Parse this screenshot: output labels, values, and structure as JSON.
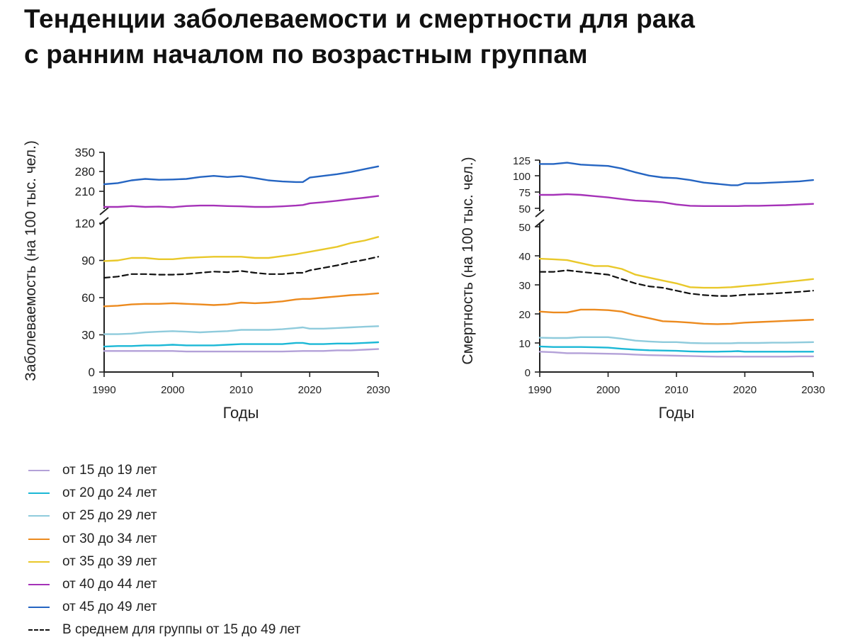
{
  "title": {
    "line1": "Тенденции заболеваемости и смертности для рака",
    "line2": "с ранним началом по возрастным группам"
  },
  "legend": [
    {
      "key": "g15_19",
      "label": "от 15 до 19 лет",
      "color": "#b3a1d8",
      "dashed": false
    },
    {
      "key": "g20_24",
      "label": "от 20 до 24 лет",
      "color": "#1bb8d6",
      "dashed": false
    },
    {
      "key": "g25_29",
      "label": "от 25 до 29 лет",
      "color": "#8fcbdc",
      "dashed": false
    },
    {
      "key": "g30_34",
      "label": "от 30 до 34 лет",
      "color": "#ec8a1e",
      "dashed": false
    },
    {
      "key": "g35_39",
      "label": "от 35 до 39 лет",
      "color": "#e9c82a",
      "dashed": false
    },
    {
      "key": "g40_44",
      "label": "от 40 до 44 лет",
      "color": "#a532b8",
      "dashed": false
    },
    {
      "key": "g45_49",
      "label": "от 45 до 49 лет",
      "color": "#2565c2",
      "dashed": false
    },
    {
      "key": "avg",
      "label": "В среднем для группы от 15 до 49 лет",
      "color": "#111111",
      "dashed": true
    }
  ],
  "chart_data": [
    {
      "id": "incidence",
      "type": "line",
      "ylabel": "Заболеваемость (на 100 тыс. чел.)",
      "xlabel": "Годы",
      "xlim": [
        1990,
        2030
      ],
      "xticks": [
        "1990",
        "2000",
        "2010",
        "2020",
        "2030"
      ],
      "axis_break": true,
      "lower_ylim": [
        0,
        120
      ],
      "lower_yticks": [
        "0",
        "30",
        "60",
        "90",
        "120"
      ],
      "upper_ylim": [
        150,
        350
      ],
      "upper_yticks": [
        "210",
        "280",
        "350"
      ],
      "x": [
        1990,
        1992,
        1994,
        1996,
        1998,
        2000,
        2002,
        2004,
        2006,
        2008,
        2010,
        2012,
        2014,
        2016,
        2018,
        2019,
        2020,
        2022,
        2024,
        2026,
        2028,
        2030
      ],
      "series": [
        {
          "key": "g15_19",
          "name": "от 15 до 19 лет",
          "values": [
            17,
            17,
            17,
            17,
            17,
            17,
            16.5,
            16.5,
            16.5,
            16.5,
            16.5,
            16.5,
            16.5,
            16.5,
            16.8,
            17,
            17,
            17,
            17.5,
            17.5,
            18,
            18.5
          ]
        },
        {
          "key": "g20_24",
          "name": "от 20 до 24 лет",
          "values": [
            20.5,
            21,
            21,
            21.5,
            21.5,
            22,
            21.5,
            21.5,
            21.5,
            22,
            22.5,
            22.5,
            22.5,
            22.5,
            23.5,
            23.5,
            22.5,
            22.5,
            23,
            23,
            23.5,
            24
          ]
        },
        {
          "key": "g25_29",
          "name": "от 25 до 29 лет",
          "values": [
            30.5,
            30.5,
            31,
            32,
            32.5,
            33,
            32.5,
            32,
            32.5,
            33,
            34,
            34,
            34,
            34.5,
            35.5,
            36,
            35,
            35,
            35.5,
            36,
            36.5,
            37
          ]
        },
        {
          "key": "g30_34",
          "name": "от 30 до 34 лет",
          "values": [
            53,
            53.5,
            54.5,
            55,
            55,
            55.5,
            55,
            54.5,
            54,
            54.5,
            56,
            55.5,
            56,
            57,
            58.5,
            59,
            59,
            60,
            61,
            62,
            62.5,
            63.5
          ]
        },
        {
          "key": "g35_39",
          "name": "от 35 до 39 лет",
          "values": [
            89.5,
            90,
            92,
            92,
            91,
            91,
            92,
            92.5,
            93,
            93,
            93,
            92,
            92,
            93.5,
            95,
            96,
            97,
            99,
            101,
            104,
            106,
            109
          ]
        },
        {
          "key": "g40_44",
          "name": "от 40 до 44 лет",
          "values": [
            155,
            155,
            158,
            155,
            156,
            154,
            158,
            160,
            160,
            158,
            157,
            155,
            155,
            157,
            160,
            162,
            168,
            172,
            177,
            183,
            188,
            194
          ]
        },
        {
          "key": "g45_49",
          "name": "от 45 до 49 лет",
          "values": [
            236,
            240,
            250,
            255,
            252,
            253,
            255,
            262,
            266,
            262,
            265,
            258,
            250,
            246,
            244,
            244,
            260,
            266,
            272,
            280,
            290,
            300
          ]
        },
        {
          "key": "avg",
          "name": "В среднем для группы от 15 до 49 лет",
          "values": [
            76,
            77,
            79,
            79,
            78.5,
            78.5,
            79,
            80,
            81,
            80.5,
            81.5,
            80,
            79,
            79,
            80,
            80,
            82,
            84,
            86,
            88.5,
            90.5,
            93
          ]
        }
      ]
    },
    {
      "id": "mortality",
      "type": "line",
      "ylabel": "Смертность (на 100 тыс. чел.)",
      "xlabel": "Годы",
      "xlim": [
        1990,
        2030
      ],
      "xticks": [
        "1990",
        "2000",
        "2010",
        "2020",
        "2030"
      ],
      "axis_break": true,
      "lower_ylim": [
        0,
        50
      ],
      "lower_yticks": [
        "0",
        "10",
        "20",
        "30",
        "40",
        "50"
      ],
      "upper_ylim": [
        50,
        125
      ],
      "upper_yticks": [
        "50",
        "75",
        "100",
        "125"
      ],
      "x": [
        1990,
        1992,
        1994,
        1996,
        1998,
        2000,
        2002,
        2004,
        2006,
        2008,
        2010,
        2012,
        2014,
        2016,
        2018,
        2019,
        2020,
        2022,
        2024,
        2026,
        2028,
        2030
      ],
      "series": [
        {
          "key": "g15_19",
          "name": "от 15 до 19 лет",
          "values": [
            7,
            6.8,
            6.5,
            6.5,
            6.4,
            6.3,
            6.2,
            6,
            5.8,
            5.7,
            5.6,
            5.5,
            5.4,
            5.3,
            5.3,
            5.3,
            5.3,
            5.3,
            5.3,
            5.3,
            5.4,
            5.4
          ]
        },
        {
          "key": "g20_24",
          "name": "от 20 до 24 лет",
          "values": [
            8.8,
            8.6,
            8.6,
            8.6,
            8.5,
            8.4,
            8,
            7.7,
            7.5,
            7.4,
            7.3,
            7.1,
            7,
            7,
            7.1,
            7.2,
            7,
            7,
            7,
            7,
            7,
            7
          ]
        },
        {
          "key": "g25_29",
          "name": "от 25 до 29 лет",
          "values": [
            11.8,
            11.7,
            11.7,
            12,
            12,
            12,
            11.5,
            10.8,
            10.5,
            10.3,
            10.3,
            10,
            9.9,
            9.9,
            9.9,
            10,
            10,
            10,
            10.1,
            10.1,
            10.2,
            10.3
          ]
        },
        {
          "key": "g30_34",
          "name": "от 30 до 34 лет",
          "values": [
            20.8,
            20.5,
            20.5,
            21.5,
            21.5,
            21.3,
            20.8,
            19.5,
            18.5,
            17.5,
            17.3,
            17,
            16.6,
            16.5,
            16.6,
            16.8,
            17,
            17.2,
            17.4,
            17.6,
            17.8,
            18
          ]
        },
        {
          "key": "g35_39",
          "name": "от 35 до 39 лет",
          "values": [
            39,
            38.8,
            38.5,
            37.5,
            36.5,
            36.5,
            35.5,
            33.5,
            32.5,
            31.5,
            30.5,
            29.2,
            29,
            29,
            29.2,
            29.4,
            29.6,
            30,
            30.5,
            31,
            31.5,
            32
          ]
        },
        {
          "key": "g40_44",
          "name": "от 40 до 44 лет",
          "values": [
            71,
            71,
            72,
            71,
            69,
            67,
            64.5,
            62,
            61,
            59.5,
            56,
            54,
            53.5,
            53.5,
            53.5,
            53.5,
            54,
            54,
            54.5,
            55,
            56,
            57
          ]
        },
        {
          "key": "g45_49",
          "name": "от 45 до 49 лет",
          "values": [
            119,
            119,
            121,
            118,
            117,
            116,
            112,
            106,
            101,
            98,
            97,
            94,
            90,
            88,
            86,
            86,
            89,
            89,
            90,
            91,
            92,
            94
          ]
        },
        {
          "key": "avg",
          "name": "В среднем для группы от 15 до 49 лет",
          "values": [
            34.5,
            34.5,
            35,
            34.5,
            34,
            33.5,
            32,
            30.5,
            29.5,
            29,
            28,
            27,
            26.5,
            26.2,
            26.2,
            26.4,
            26.6,
            26.8,
            27,
            27.3,
            27.6,
            28
          ]
        }
      ]
    }
  ]
}
